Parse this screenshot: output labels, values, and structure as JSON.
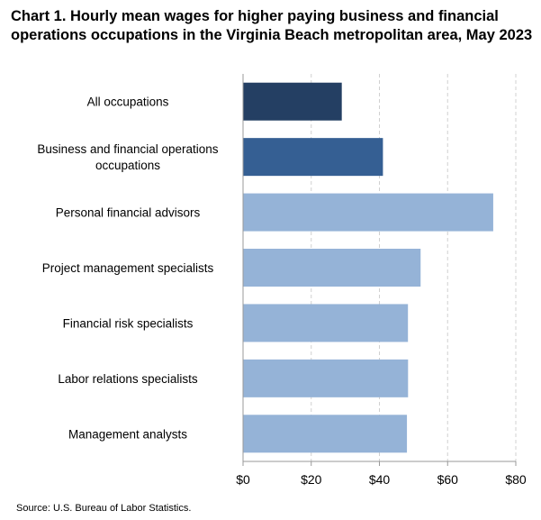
{
  "title": "Chart 1. Hourly mean wages for higher paying business and financial operations occupations in the Virginia Beach metropolitan area, May 2023",
  "source": "Source: U.S. Bureau of Labor Statistics.",
  "chart_data": {
    "type": "bar",
    "orientation": "horizontal",
    "categories": [
      [
        "All occupations"
      ],
      [
        "Business and financial operations",
        "occupations"
      ],
      [
        "Personal financial advisors"
      ],
      [
        "Project management specialists"
      ],
      [
        "Financial risk specialists"
      ],
      [
        "Labor relations specialists"
      ],
      [
        "Management analysts"
      ]
    ],
    "values": [
      28.96,
      41.03,
      73.38,
      52.08,
      48.37,
      48.4,
      48.07
    ],
    "bar_colors": [
      "#243f63",
      "#355f93",
      "#95b3d7",
      "#95b3d7",
      "#95b3d7",
      "#95b3d7",
      "#95b3d7"
    ],
    "xlim": [
      0,
      80
    ],
    "xticks": [
      0,
      20,
      40,
      60,
      80
    ],
    "xtick_labels": [
      "$0",
      "$20",
      "$40",
      "$60",
      "$80"
    ],
    "gridlines": "vertical dashed",
    "legend": "none"
  }
}
